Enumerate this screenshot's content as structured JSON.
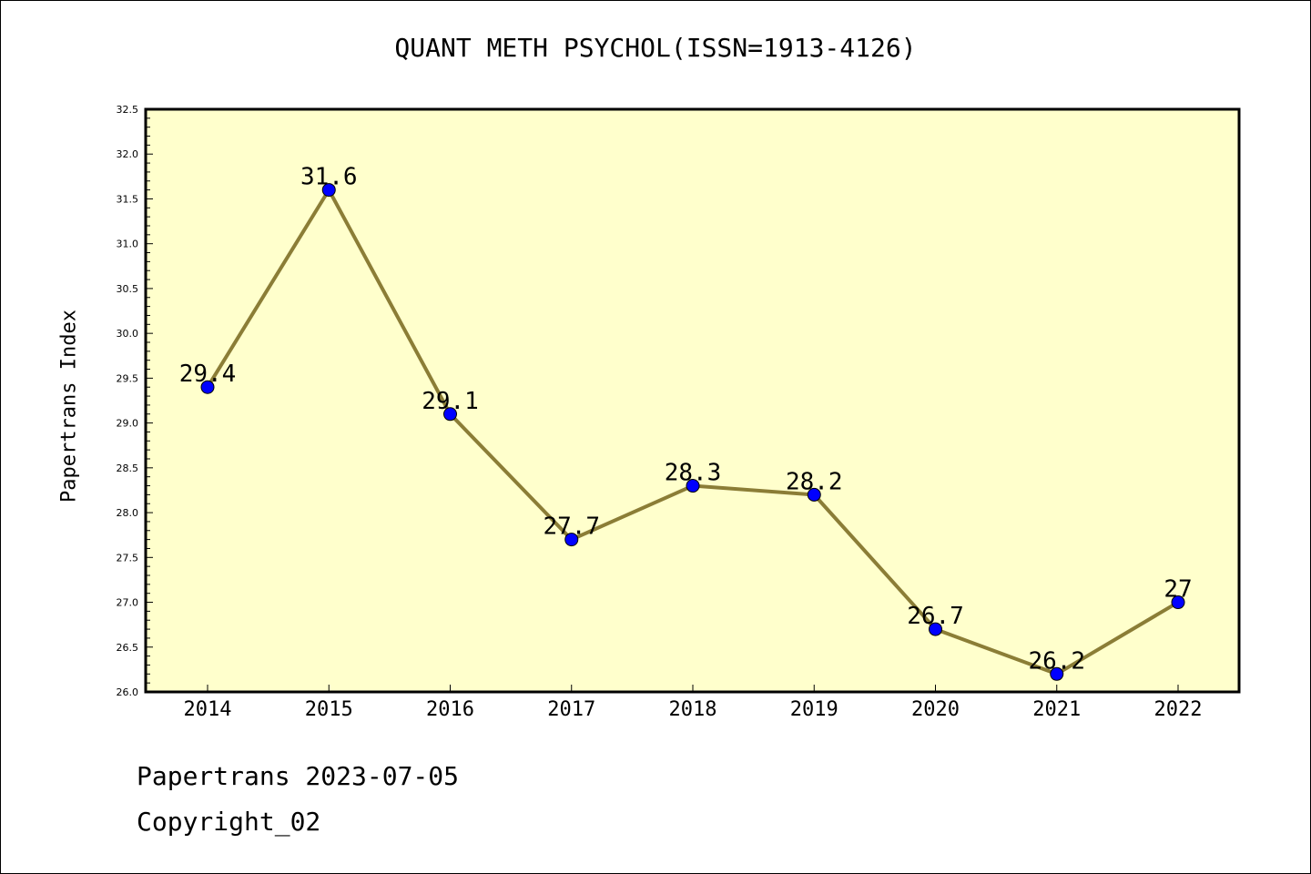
{
  "colors": {
    "plot_background": "#ffffcc",
    "line": "#8b7d36",
    "marker": "#0000ff",
    "frame": "#000000"
  },
  "footer": {
    "line1": "Papertrans 2023-07-05",
    "line2": "Copyright_02"
  },
  "chart_data": {
    "type": "line",
    "title": "QUANT METH PSYCHOL(ISSN=1913-4126)",
    "xlabel": "",
    "ylabel": "Papertrans Index",
    "x": [
      "2014",
      "2015",
      "2016",
      "2017",
      "2018",
      "2019",
      "2020",
      "2021",
      "2022"
    ],
    "series": [
      {
        "values": [
          29.4,
          31.6,
          29.1,
          27.7,
          28.3,
          28.2,
          26.7,
          26.2,
          27.0
        ],
        "labels": [
          "29.4",
          "31.6",
          "29.1",
          "27.7",
          "28.3",
          "28.2",
          "26.7",
          "26.2",
          "27"
        ]
      }
    ],
    "ylim": [
      26.0,
      32.5
    ],
    "yticks": [
      "26.0",
      "26.5",
      "27.0",
      "27.5",
      "28.0",
      "28.5",
      "29.0",
      "29.5",
      "30.0",
      "30.5",
      "31.0",
      "31.5",
      "32.0",
      "32.5"
    ],
    "grid": false,
    "legend": "none"
  }
}
